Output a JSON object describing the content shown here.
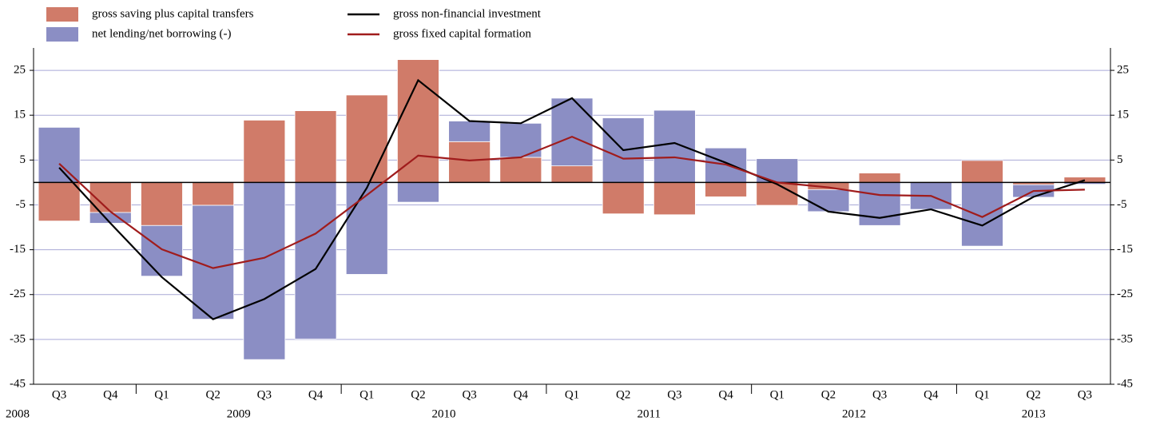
{
  "chart_data": {
    "type": "combo",
    "categories": [
      "Q3",
      "Q4",
      "Q1",
      "Q2",
      "Q3",
      "Q4",
      "Q1",
      "Q2",
      "Q3",
      "Q4",
      "Q1",
      "Q2",
      "Q3",
      "Q4",
      "Q1",
      "Q2",
      "Q3",
      "Q4",
      "Q1",
      "Q2",
      "Q3"
    ],
    "years": [
      "2008",
      "2009",
      "2010",
      "2011",
      "2012",
      "2013"
    ],
    "series": [
      {
        "name": "gross saving plus capital transfers",
        "type": "bar",
        "color": "#d07b69",
        "values": [
          -8.6,
          -6.7,
          -9.6,
          -5.1,
          13.9,
          16.0,
          19.5,
          27.4,
          9.1,
          5.6,
          3.7,
          -7.0,
          -7.2,
          -3.2,
          -5.1,
          -1.6,
          2.1,
          0,
          4.9,
          -0.5,
          1.2
        ]
      },
      {
        "name": "net lending/net borrowing (-)",
        "type": "bar",
        "color": "#8b8ec4",
        "values": [
          12.3,
          -2.4,
          -11.3,
          -25.4,
          -39.5,
          -34.9,
          -20.5,
          -4.4,
          4.6,
          7.6,
          15.1,
          14.4,
          16.1,
          7.7,
          5.3,
          -4.9,
          -9.6,
          -6.0,
          -14.2,
          -2.8,
          -0.4
        ]
      },
      {
        "name": "gross non-financial investment",
        "type": "line",
        "color": "#000000",
        "values": [
          3.3,
          -9.1,
          -21.1,
          -30.5,
          -26.0,
          -19.3,
          -1.2,
          22.8,
          13.7,
          13.2,
          18.8,
          7.2,
          8.8,
          4.4,
          -0.4,
          -6.5,
          -7.9,
          -6.0,
          -9.6,
          -3.2,
          0.5
        ]
      },
      {
        "name": "gross fixed capital formation",
        "type": "line",
        "color": "#a01c1c",
        "values": [
          4.2,
          -6.5,
          -14.9,
          -19.1,
          -16.8,
          -11.4,
          -2.8,
          6.0,
          4.9,
          5.6,
          10.2,
          5.3,
          5.6,
          4.0,
          0,
          -1.1,
          -2.8,
          -3.0,
          -7.7,
          -1.9,
          -1.6
        ]
      }
    ],
    "ylim": [
      -45,
      30
    ],
    "yticks": [
      -45,
      -35,
      -25,
      -15,
      -5,
      5,
      15,
      25
    ],
    "y2lim": [
      -45,
      30
    ],
    "y2ticks": [
      -45,
      -35,
      -25,
      -15,
      -5,
      5,
      15,
      25
    ],
    "grid": true
  }
}
